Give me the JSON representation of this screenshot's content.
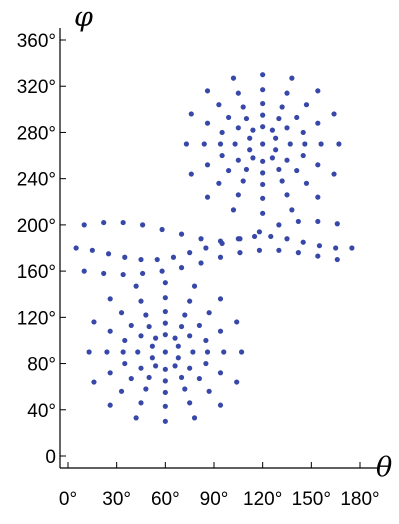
{
  "chart_data": {
    "type": "scatter",
    "xlabel": "θ",
    "ylabel": "φ",
    "xlim": [
      0,
      180
    ],
    "ylim": [
      0,
      360
    ],
    "x_ticks": [
      "0°",
      "30°",
      "60°",
      "90°",
      "120°",
      "150°",
      "180°"
    ],
    "y_ticks": [
      "0",
      "40°",
      "80°",
      "120°",
      "160°",
      "200°",
      "240°",
      "280°",
      "320°",
      "360°"
    ],
    "grid": false,
    "marker_color": "#3848a8",
    "fixed_points": [
      {
        "theta": 60,
        "phi": 90
      },
      {
        "theta": 120,
        "phi": 270
      }
    ],
    "series": [
      {
        "phi_center": 90,
        "points": [
          {
            "x": 60,
            "y": 105
          },
          {
            "x": 66,
            "y": 102
          },
          {
            "x": 68,
            "y": 95
          },
          {
            "x": 68,
            "y": 85
          },
          {
            "x": 66,
            "y": 78
          },
          {
            "x": 60,
            "y": 75
          },
          {
            "x": 54,
            "y": 78
          },
          {
            "x": 52,
            "y": 85
          },
          {
            "x": 52,
            "y": 95
          },
          {
            "x": 54,
            "y": 102
          },
          {
            "x": 60,
            "y": 115
          },
          {
            "x": 70,
            "y": 112
          },
          {
            "x": 75,
            "y": 104
          },
          {
            "x": 77,
            "y": 90
          },
          {
            "x": 75,
            "y": 76
          },
          {
            "x": 70,
            "y": 68
          },
          {
            "x": 60,
            "y": 65
          },
          {
            "x": 50,
            "y": 68
          },
          {
            "x": 45,
            "y": 76
          },
          {
            "x": 43,
            "y": 90
          },
          {
            "x": 45,
            "y": 104
          },
          {
            "x": 50,
            "y": 112
          },
          {
            "x": 60,
            "y": 125
          },
          {
            "x": 72,
            "y": 122
          },
          {
            "x": 81,
            "y": 113
          },
          {
            "x": 85,
            "y": 100
          },
          {
            "x": 86,
            "y": 90
          },
          {
            "x": 85,
            "y": 80
          },
          {
            "x": 81,
            "y": 67
          },
          {
            "x": 72,
            "y": 58
          },
          {
            "x": 60,
            "y": 55
          },
          {
            "x": 48,
            "y": 58
          },
          {
            "x": 39,
            "y": 67
          },
          {
            "x": 35,
            "y": 80
          },
          {
            "x": 34,
            "y": 90
          },
          {
            "x": 35,
            "y": 100
          },
          {
            "x": 39,
            "y": 113
          },
          {
            "x": 48,
            "y": 122
          },
          {
            "x": 60,
            "y": 137
          },
          {
            "x": 75,
            "y": 134
          },
          {
            "x": 87,
            "y": 124
          },
          {
            "x": 94,
            "y": 108
          },
          {
            "x": 96,
            "y": 90
          },
          {
            "x": 94,
            "y": 72
          },
          {
            "x": 87,
            "y": 56
          },
          {
            "x": 75,
            "y": 46
          },
          {
            "x": 60,
            "y": 43
          },
          {
            "x": 45,
            "y": 46
          },
          {
            "x": 33,
            "y": 56
          },
          {
            "x": 26,
            "y": 72
          },
          {
            "x": 24,
            "y": 90
          },
          {
            "x": 26,
            "y": 108
          },
          {
            "x": 33,
            "y": 124
          },
          {
            "x": 45,
            "y": 134
          },
          {
            "x": 60,
            "y": 150
          },
          {
            "x": 78,
            "y": 147
          },
          {
            "x": 94,
            "y": 136
          },
          {
            "x": 104,
            "y": 116
          },
          {
            "x": 107,
            "y": 90
          },
          {
            "x": 104,
            "y": 64
          },
          {
            "x": 94,
            "y": 44
          },
          {
            "x": 78,
            "y": 33
          },
          {
            "x": 60,
            "y": 30
          },
          {
            "x": 42,
            "y": 33
          },
          {
            "x": 26,
            "y": 44
          },
          {
            "x": 16,
            "y": 64
          },
          {
            "x": 13,
            "y": 90
          },
          {
            "x": 16,
            "y": 116
          },
          {
            "x": 26,
            "y": 136
          },
          {
            "x": 42,
            "y": 147
          }
        ]
      },
      {
        "phi_center": 270,
        "points": [
          {
            "x": 120,
            "y": 285
          },
          {
            "x": 126,
            "y": 282
          },
          {
            "x": 128,
            "y": 275
          },
          {
            "x": 128,
            "y": 265
          },
          {
            "x": 126,
            "y": 258
          },
          {
            "x": 120,
            "y": 255
          },
          {
            "x": 114,
            "y": 258
          },
          {
            "x": 112,
            "y": 265
          },
          {
            "x": 112,
            "y": 275
          },
          {
            "x": 114,
            "y": 282
          },
          {
            "x": 120,
            "y": 295
          },
          {
            "x": 130,
            "y": 292
          },
          {
            "x": 135,
            "y": 284
          },
          {
            "x": 137,
            "y": 270
          },
          {
            "x": 135,
            "y": 256
          },
          {
            "x": 130,
            "y": 248
          },
          {
            "x": 120,
            "y": 245
          },
          {
            "x": 110,
            "y": 248
          },
          {
            "x": 105,
            "y": 256
          },
          {
            "x": 103,
            "y": 270
          },
          {
            "x": 105,
            "y": 284
          },
          {
            "x": 110,
            "y": 292
          },
          {
            "x": 120,
            "y": 305
          },
          {
            "x": 132,
            "y": 302
          },
          {
            "x": 141,
            "y": 293
          },
          {
            "x": 145,
            "y": 280
          },
          {
            "x": 146,
            "y": 270
          },
          {
            "x": 145,
            "y": 260
          },
          {
            "x": 141,
            "y": 247
          },
          {
            "x": 132,
            "y": 238
          },
          {
            "x": 120,
            "y": 235
          },
          {
            "x": 108,
            "y": 238
          },
          {
            "x": 99,
            "y": 247
          },
          {
            "x": 95,
            "y": 260
          },
          {
            "x": 94,
            "y": 270
          },
          {
            "x": 95,
            "y": 280
          },
          {
            "x": 99,
            "y": 293
          },
          {
            "x": 108,
            "y": 302
          },
          {
            "x": 120,
            "y": 317
          },
          {
            "x": 135,
            "y": 314
          },
          {
            "x": 147,
            "y": 304
          },
          {
            "x": 154,
            "y": 288
          },
          {
            "x": 156,
            "y": 270
          },
          {
            "x": 154,
            "y": 252
          },
          {
            "x": 147,
            "y": 236
          },
          {
            "x": 135,
            "y": 226
          },
          {
            "x": 120,
            "y": 223
          },
          {
            "x": 105,
            "y": 226
          },
          {
            "x": 93,
            "y": 236
          },
          {
            "x": 86,
            "y": 252
          },
          {
            "x": 84,
            "y": 270
          },
          {
            "x": 86,
            "y": 288
          },
          {
            "x": 93,
            "y": 304
          },
          {
            "x": 105,
            "y": 314
          },
          {
            "x": 120,
            "y": 330
          },
          {
            "x": 138,
            "y": 327
          },
          {
            "x": 154,
            "y": 316
          },
          {
            "x": 164,
            "y": 296
          },
          {
            "x": 167,
            "y": 270
          },
          {
            "x": 164,
            "y": 244
          },
          {
            "x": 154,
            "y": 224
          },
          {
            "x": 138,
            "y": 213
          },
          {
            "x": 120,
            "y": 210
          },
          {
            "x": 102,
            "y": 213
          },
          {
            "x": 86,
            "y": 224
          },
          {
            "x": 76,
            "y": 244
          },
          {
            "x": 73,
            "y": 270
          },
          {
            "x": 76,
            "y": 296
          },
          {
            "x": 86,
            "y": 316
          },
          {
            "x": 102,
            "y": 327
          }
        ]
      },
      {
        "phi_center": 180,
        "points": [
          {
            "x": 5,
            "y": 180
          },
          {
            "x": 15,
            "y": 178
          },
          {
            "x": 25,
            "y": 175
          },
          {
            "x": 35,
            "y": 172
          },
          {
            "x": 45,
            "y": 170
          },
          {
            "x": 55,
            "y": 170
          },
          {
            "x": 65,
            "y": 172
          },
          {
            "x": 75,
            "y": 176
          },
          {
            "x": 85,
            "y": 180
          },
          {
            "x": 95,
            "y": 184
          },
          {
            "x": 105,
            "y": 188
          },
          {
            "x": 115,
            "y": 190
          },
          {
            "x": 125,
            "y": 190
          },
          {
            "x": 135,
            "y": 188
          },
          {
            "x": 145,
            "y": 185
          },
          {
            "x": 155,
            "y": 182
          },
          {
            "x": 165,
            "y": 180
          },
          {
            "x": 175,
            "y": 180
          },
          {
            "x": 10,
            "y": 160
          },
          {
            "x": 22,
            "y": 158
          },
          {
            "x": 34,
            "y": 157
          },
          {
            "x": 46,
            "y": 158
          },
          {
            "x": 58,
            "y": 160
          },
          {
            "x": 70,
            "y": 163
          },
          {
            "x": 82,
            "y": 167
          },
          {
            "x": 94,
            "y": 172
          },
          {
            "x": 106,
            "y": 176
          },
          {
            "x": 118,
            "y": 178
          },
          {
            "x": 130,
            "y": 178
          },
          {
            "x": 142,
            "y": 176
          },
          {
            "x": 154,
            "y": 173
          },
          {
            "x": 166,
            "y": 170
          },
          {
            "x": 10,
            "y": 200
          },
          {
            "x": 22,
            "y": 202
          },
          {
            "x": 34,
            "y": 202
          },
          {
            "x": 46,
            "y": 200
          },
          {
            "x": 58,
            "y": 196
          },
          {
            "x": 70,
            "y": 192
          },
          {
            "x": 82,
            "y": 188
          },
          {
            "x": 94,
            "y": 186
          },
          {
            "x": 106,
            "y": 188
          },
          {
            "x": 118,
            "y": 194
          },
          {
            "x": 130,
            "y": 200
          },
          {
            "x": 142,
            "y": 203
          },
          {
            "x": 154,
            "y": 203
          },
          {
            "x": 166,
            "y": 201
          }
        ]
      }
    ]
  }
}
